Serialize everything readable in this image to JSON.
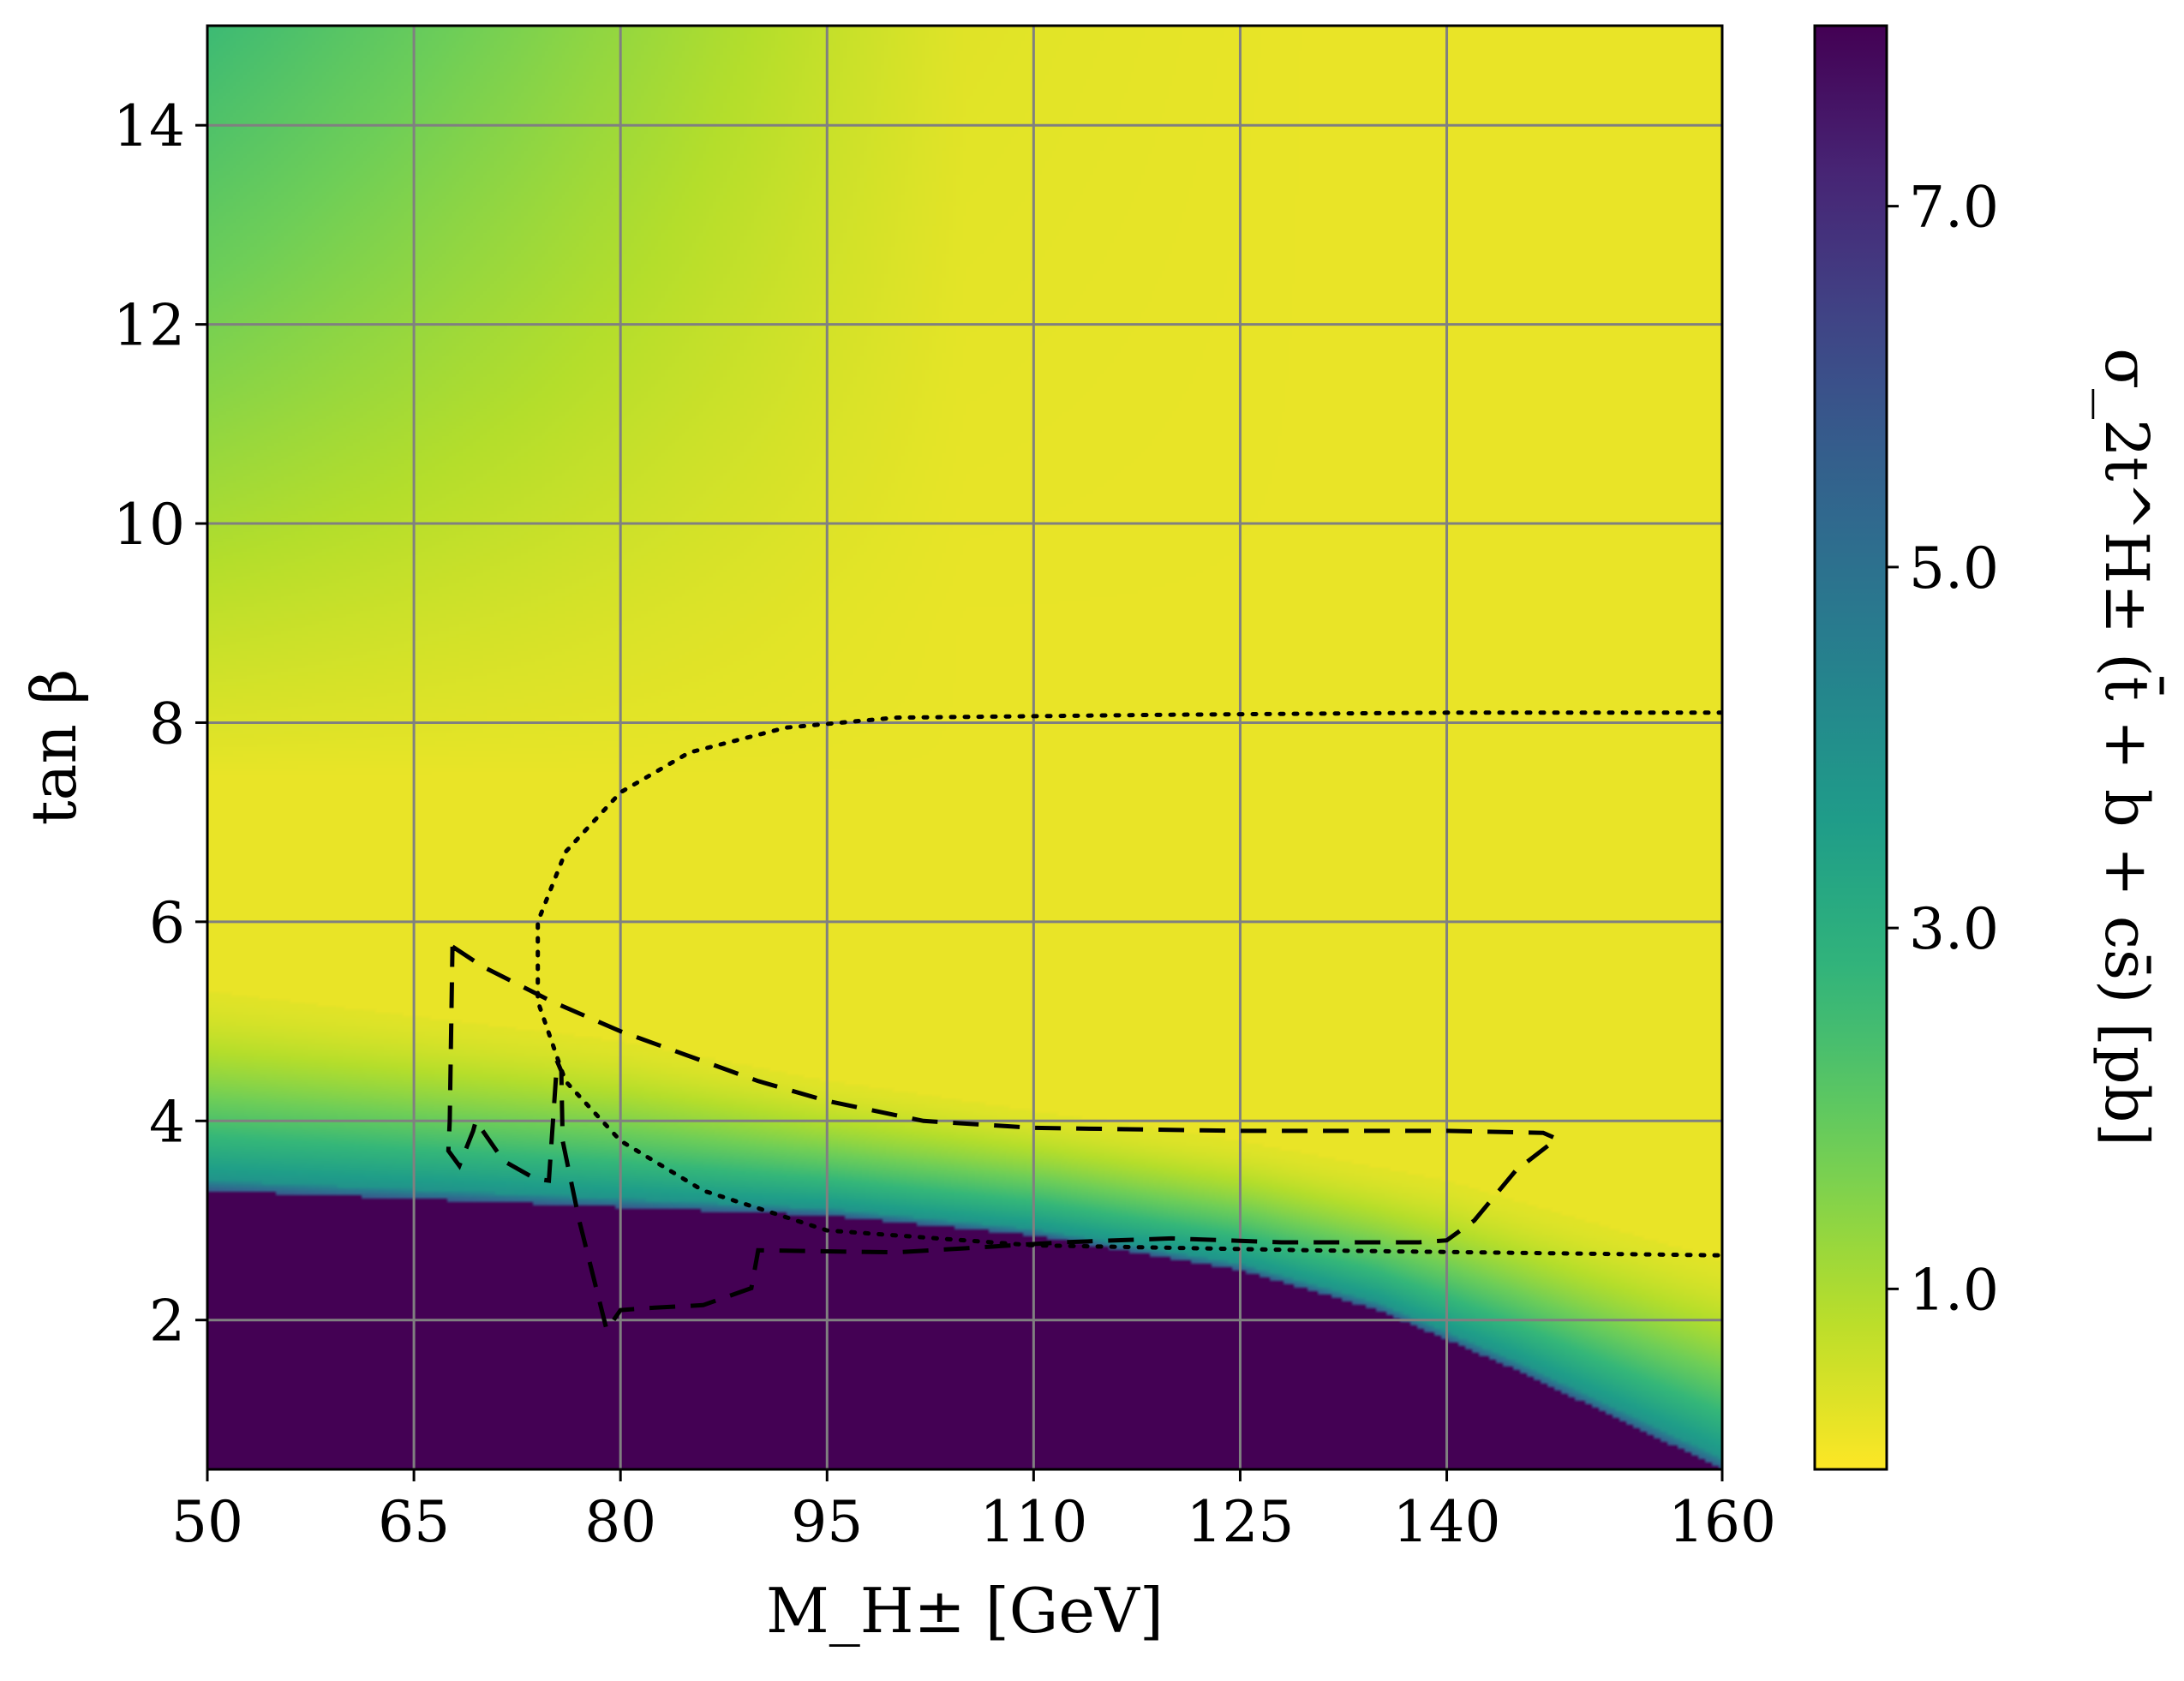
{
  "chart_data": {
    "type": "heatmap",
    "title": "",
    "xlabel": "M_H± [GeV]",
    "ylabel": "tan β",
    "colorbar_label": "σ_2t^H± (t̄ + b + cs̄) [pb]",
    "colormap": "viridis_r",
    "xlim": [
      50,
      160
    ],
    "ylim": [
      0.5,
      15
    ],
    "xticks": [
      50,
      65,
      80,
      95,
      110,
      125,
      140,
      160
    ],
    "yticks": [
      2,
      4,
      6,
      8,
      10,
      12,
      14
    ],
    "x_tick_labels": [
      "50",
      "65",
      "80",
      "95",
      "110",
      "125",
      "140",
      "160"
    ],
    "y_tick_labels": [
      "2",
      "4",
      "6",
      "8",
      "10",
      "12",
      "14"
    ],
    "colorbar_range": [
      0,
      8
    ],
    "colorbar_ticks": [
      1.0,
      3.0,
      5.0,
      7.0
    ],
    "colorbar_tick_labels": [
      "1.0",
      "3.0",
      "5.0",
      "7.0"
    ],
    "grid": true,
    "colors": {
      "low": "#fde725",
      "mid": "#21918c",
      "high": "#440154",
      "grid": "#808080",
      "contour": "#000000"
    },
    "heatmap_model": {
      "saturated_region_upper_tanb": [
        [
          50,
          3.3
        ],
        [
          95,
          3.05
        ],
        [
          110,
          2.85
        ],
        [
          125,
          2.5
        ],
        [
          135,
          2.1
        ],
        [
          145,
          1.5
        ],
        [
          160,
          0.5
        ]
      ],
      "transition_band_top_tanb": [
        [
          50,
          5.3
        ],
        [
          80,
          4.8
        ],
        [
          95,
          4.4
        ],
        [
          110,
          4.1
        ],
        [
          125,
          3.8
        ],
        [
          140,
          3.4
        ],
        [
          160,
          2.6
        ]
      ],
      "upper_left_value_pb": 2.2
    },
    "contours": [
      {
        "style": "dotted",
        "points": [
          [
            160,
            8.1
          ],
          [
            140,
            8.1
          ],
          [
            120,
            8.08
          ],
          [
            100,
            8.05
          ],
          [
            92,
            7.95
          ],
          [
            85,
            7.7
          ],
          [
            80,
            7.3
          ],
          [
            76,
            6.7
          ],
          [
            74,
            6.0
          ],
          [
            74,
            5.2
          ],
          [
            76,
            4.4
          ],
          [
            80,
            3.8
          ],
          [
            86,
            3.3
          ],
          [
            95,
            2.9
          ],
          [
            110,
            2.75
          ],
          [
            130,
            2.7
          ],
          [
            160,
            2.65
          ]
        ]
      },
      {
        "style": "dashed",
        "points": [
          [
            67.8,
            5.75
          ],
          [
            70,
            5.55
          ],
          [
            75,
            5.2
          ],
          [
            80,
            4.9
          ],
          [
            90,
            4.4
          ],
          [
            95,
            4.2
          ],
          [
            102,
            4.0
          ],
          [
            110,
            3.93
          ],
          [
            125,
            3.9
          ],
          [
            140,
            3.9
          ],
          [
            147,
            3.88
          ],
          [
            148,
            3.82
          ],
          [
            145,
            3.5
          ],
          [
            142,
            3.0
          ],
          [
            140,
            2.8
          ],
          [
            138,
            2.78
          ],
          [
            128,
            2.78
          ],
          [
            120,
            2.82
          ],
          [
            112,
            2.78
          ],
          [
            105,
            2.72
          ],
          [
            100,
            2.68
          ],
          [
            90,
            2.7
          ],
          [
            89.5,
            2.32
          ],
          [
            86,
            2.15
          ],
          [
            82,
            2.12
          ],
          [
            80,
            2.1
          ],
          [
            79,
            1.9
          ],
          [
            77,
            3.0
          ],
          [
            75.8,
            3.8
          ],
          [
            75.7,
            4.5
          ],
          [
            75.4,
            4.6
          ],
          [
            74.8,
            3.4
          ],
          [
            73.8,
            3.42
          ],
          [
            71.5,
            3.6
          ],
          [
            69.5,
            4.0
          ],
          [
            69.3,
            3.9
          ],
          [
            68.3,
            3.55
          ],
          [
            67.5,
            3.7
          ],
          [
            67.6,
            4.0
          ],
          [
            67.8,
            5.75
          ]
        ]
      }
    ]
  }
}
